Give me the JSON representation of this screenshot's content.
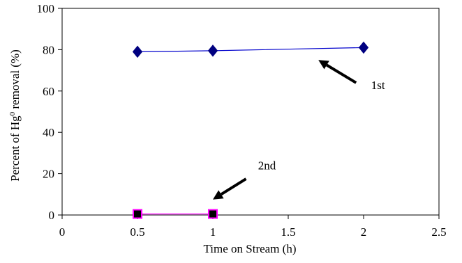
{
  "chart_data": {
    "type": "line",
    "xlabel": "Time on Stream (h)",
    "ylabel_parts": [
      "Percent of Hg",
      "0",
      " removal (%)"
    ],
    "xlim": [
      0,
      2.5
    ],
    "ylim": [
      0,
      100
    ],
    "xticks": [
      0,
      0.5,
      1,
      1.5,
      2,
      2.5
    ],
    "xtick_labels": [
      "0",
      "0.5",
      "1",
      "1.5",
      "2",
      "2.5"
    ],
    "yticks": [
      0,
      20,
      40,
      60,
      80,
      100
    ],
    "ytick_labels": [
      "0",
      "20",
      "40",
      "60",
      "80",
      "100"
    ],
    "grid": false,
    "series": [
      {
        "x": [
          0.5,
          1,
          2
        ],
        "y": [
          79,
          79.5,
          81
        ],
        "line_color": "#0000cc",
        "marker": "diamond",
        "marker_color": "#000080"
      },
      {
        "x": [
          0.5,
          1
        ],
        "y": [
          0.5,
          0.5
        ],
        "line_color": "#ff00ff",
        "marker": "square",
        "marker_color": "#000000",
        "marker_edge": "#ff00ff"
      }
    ],
    "annotations": [
      {
        "text": "1st",
        "arrow_from": [
          1.95,
          64
        ],
        "arrow_to": [
          1.7,
          75
        ],
        "text_at": [
          2.05,
          61
        ]
      },
      {
        "text": "2nd",
        "arrow_from": [
          1.22,
          17.5
        ],
        "arrow_to": [
          1.0,
          7.5
        ],
        "text_at": [
          1.3,
          22
        ]
      }
    ]
  }
}
